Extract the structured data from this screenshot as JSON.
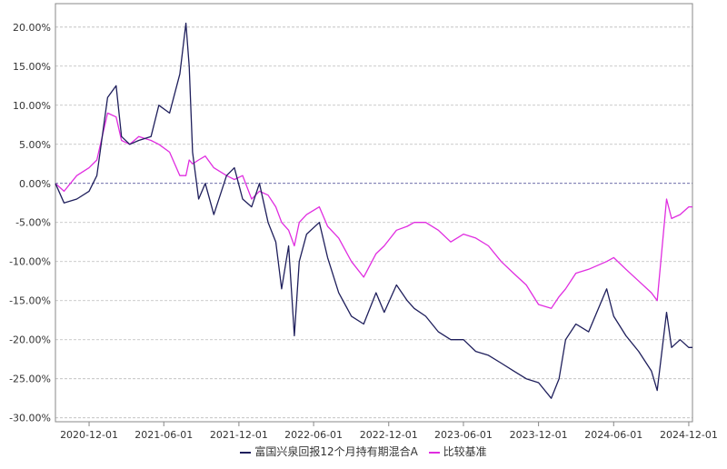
{
  "chart_data": {
    "type": "line",
    "title": "",
    "xlabel": "",
    "ylabel": "",
    "x_ticks": [
      "2020-12-01",
      "2021-06-01",
      "2021-12-01",
      "2022-06-01",
      "2022-12-01",
      "2023-06-01",
      "2023-12-01",
      "2024-06-01",
      "2024-12-01"
    ],
    "y_ticks": [
      "20.00%",
      "15.00%",
      "10.00%",
      "5.00%",
      "0.00%",
      "-5.00%",
      "-10.00%",
      "-15.00%",
      "-20.00%",
      "-25.00%",
      "-30.00%"
    ],
    "xlim": [
      "2020-09-10",
      "2024-12-10"
    ],
    "ylim": [
      -30.5,
      23
    ],
    "grid": true,
    "legend_position": "bottom",
    "x": [
      "2020-09-10",
      "2020-10-01",
      "2020-11-01",
      "2020-12-01",
      "2020-12-20",
      "2021-01-15",
      "2021-02-05",
      "2021-02-18",
      "2021-03-10",
      "2021-04-01",
      "2021-05-01",
      "2021-05-20",
      "2021-06-15",
      "2021-07-10",
      "2021-07-25",
      "2021-08-02",
      "2021-08-10",
      "2021-08-25",
      "2021-09-10",
      "2021-10-01",
      "2021-11-01",
      "2021-11-20",
      "2021-12-10",
      "2022-01-01",
      "2022-01-20",
      "2022-02-10",
      "2022-03-01",
      "2022-03-15",
      "2022-04-01",
      "2022-04-15",
      "2022-04-27",
      "2022-05-15",
      "2022-06-15",
      "2022-07-05",
      "2022-08-01",
      "2022-09-01",
      "2022-10-01",
      "2022-10-31",
      "2022-11-20",
      "2022-12-20",
      "2023-01-15",
      "2023-02-01",
      "2023-03-01",
      "2023-04-01",
      "2023-05-01",
      "2023-06-01",
      "2023-07-01",
      "2023-08-01",
      "2023-09-01",
      "2023-10-01",
      "2023-11-01",
      "2023-12-01",
      "2024-01-01",
      "2024-01-20",
      "2024-02-05",
      "2024-03-01",
      "2024-04-01",
      "2024-05-15",
      "2024-06-01",
      "2024-07-01",
      "2024-08-01",
      "2024-09-01",
      "2024-09-15",
      "2024-10-08",
      "2024-10-20",
      "2024-11-10",
      "2024-12-01",
      "2024-12-10"
    ],
    "series": [
      {
        "name": "富国兴泉回报12个月持有期混合A",
        "color": "#1f1f5c",
        "values": [
          0.0,
          -2.5,
          -2.0,
          -1.0,
          1.0,
          11.0,
          12.5,
          6.0,
          5.0,
          5.5,
          6.0,
          10.0,
          9.0,
          14.0,
          20.5,
          15.0,
          4.0,
          -2.0,
          0.0,
          -4.0,
          1.0,
          2.0,
          -2.0,
          -3.0,
          0.0,
          -5.0,
          -7.5,
          -13.5,
          -8.0,
          -19.5,
          -10.0,
          -6.5,
          -5.0,
          -9.5,
          -14.0,
          -17.0,
          -18.0,
          -14.0,
          -16.5,
          -13.0,
          -15.0,
          -16.0,
          -17.0,
          -19.0,
          -20.0,
          -20.0,
          -21.5,
          -22.0,
          -23.0,
          -24.0,
          -25.0,
          -25.5,
          -27.5,
          -25.0,
          -20.0,
          -18.0,
          -19.0,
          -13.5,
          -17.0,
          -19.5,
          -21.5,
          -24.0,
          -26.5,
          -16.5,
          -21.0,
          -20.0,
          -21.0,
          -21.0
        ]
      },
      {
        "name": "比较基准",
        "color": "#e02de0",
        "values": [
          0.0,
          -1.0,
          1.0,
          2.0,
          3.0,
          9.0,
          8.5,
          5.5,
          5.0,
          6.0,
          5.5,
          5.0,
          4.0,
          1.0,
          1.0,
          3.0,
          2.5,
          3.0,
          3.5,
          2.0,
          1.0,
          0.5,
          1.0,
          -2.0,
          -1.0,
          -1.5,
          -3.0,
          -5.0,
          -6.0,
          -8.0,
          -5.0,
          -4.0,
          -3.0,
          -5.5,
          -7.0,
          -10.0,
          -12.0,
          -9.0,
          -8.0,
          -6.0,
          -5.5,
          -5.0,
          -5.0,
          -6.0,
          -7.5,
          -6.5,
          -7.0,
          -8.0,
          -10.0,
          -11.5,
          -13.0,
          -15.5,
          -16.0,
          -14.5,
          -13.5,
          -11.5,
          -11.0,
          -10.0,
          -9.5,
          -11.0,
          -12.5,
          -14.0,
          -15.0,
          -2.0,
          -4.5,
          -4.0,
          -3.0,
          -3.0
        ]
      }
    ]
  }
}
